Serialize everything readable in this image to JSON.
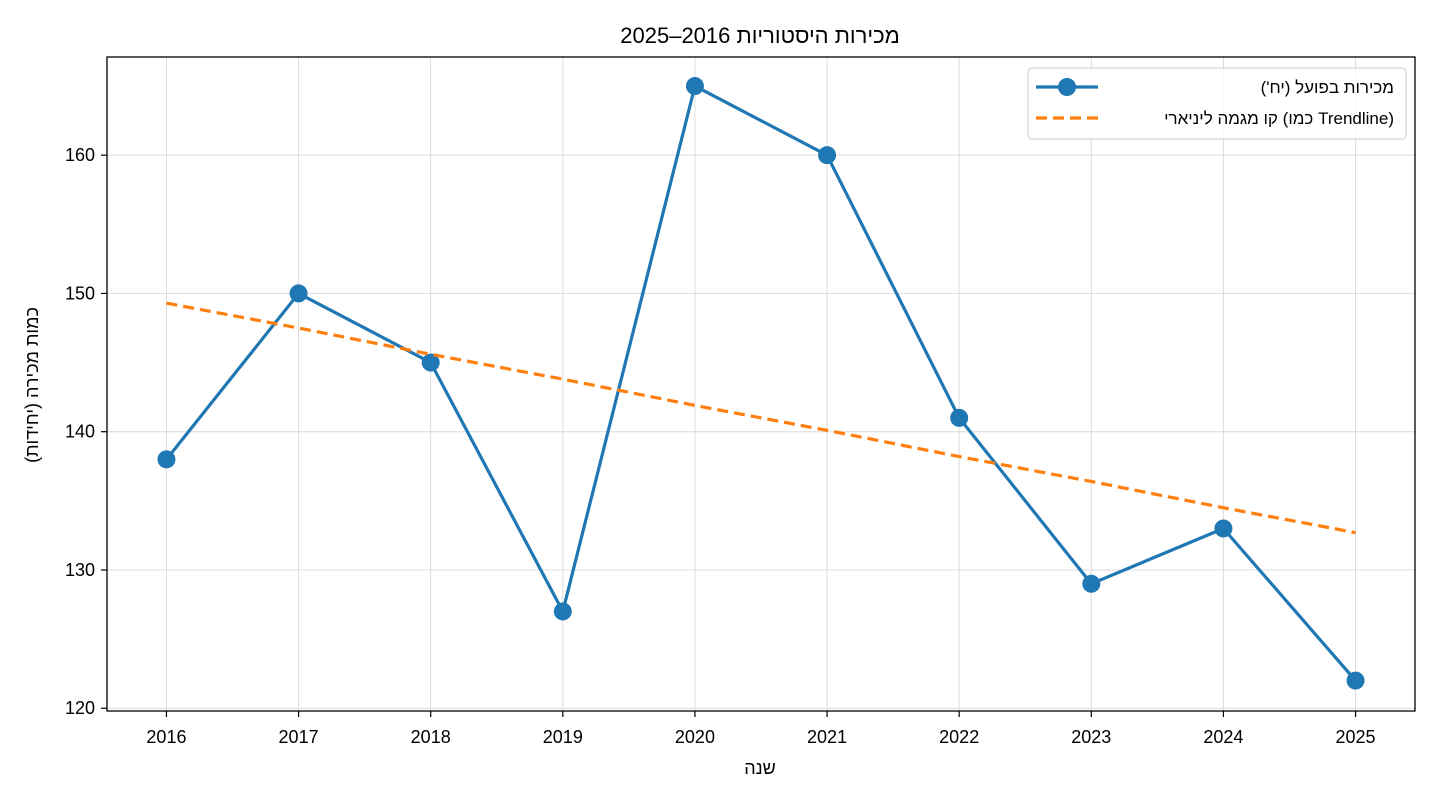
{
  "chart_data": {
    "type": "line",
    "title": "מכירות היסטוריות 2016–2025",
    "xlabel": "שנה",
    "ylabel": "כמות מכירה (יחידות)",
    "x": [
      2016,
      2017,
      2018,
      2019,
      2020,
      2021,
      2022,
      2023,
      2024,
      2025
    ],
    "xlim": [
      2015.55,
      2025.45
    ],
    "ylim": [
      119.8,
      167.1
    ],
    "yticks": [
      120,
      130,
      140,
      150,
      160
    ],
    "grid": true,
    "legend_position": "top-right",
    "series": [
      {
        "name": "מכירות בפועל (יח')",
        "style": "solid-markers",
        "color": "#1f77b4",
        "values": [
          138,
          150,
          145,
          127,
          165,
          160,
          141,
          129,
          133,
          122
        ]
      },
      {
        "name": "קו מגמה ליניארי (כמו Trendline)",
        "style": "dashed",
        "color": "#ff7f0e",
        "values": [
          149.3,
          147.5,
          145.6,
          143.8,
          141.9,
          140.1,
          138.2,
          136.4,
          134.5,
          132.7
        ]
      }
    ]
  }
}
